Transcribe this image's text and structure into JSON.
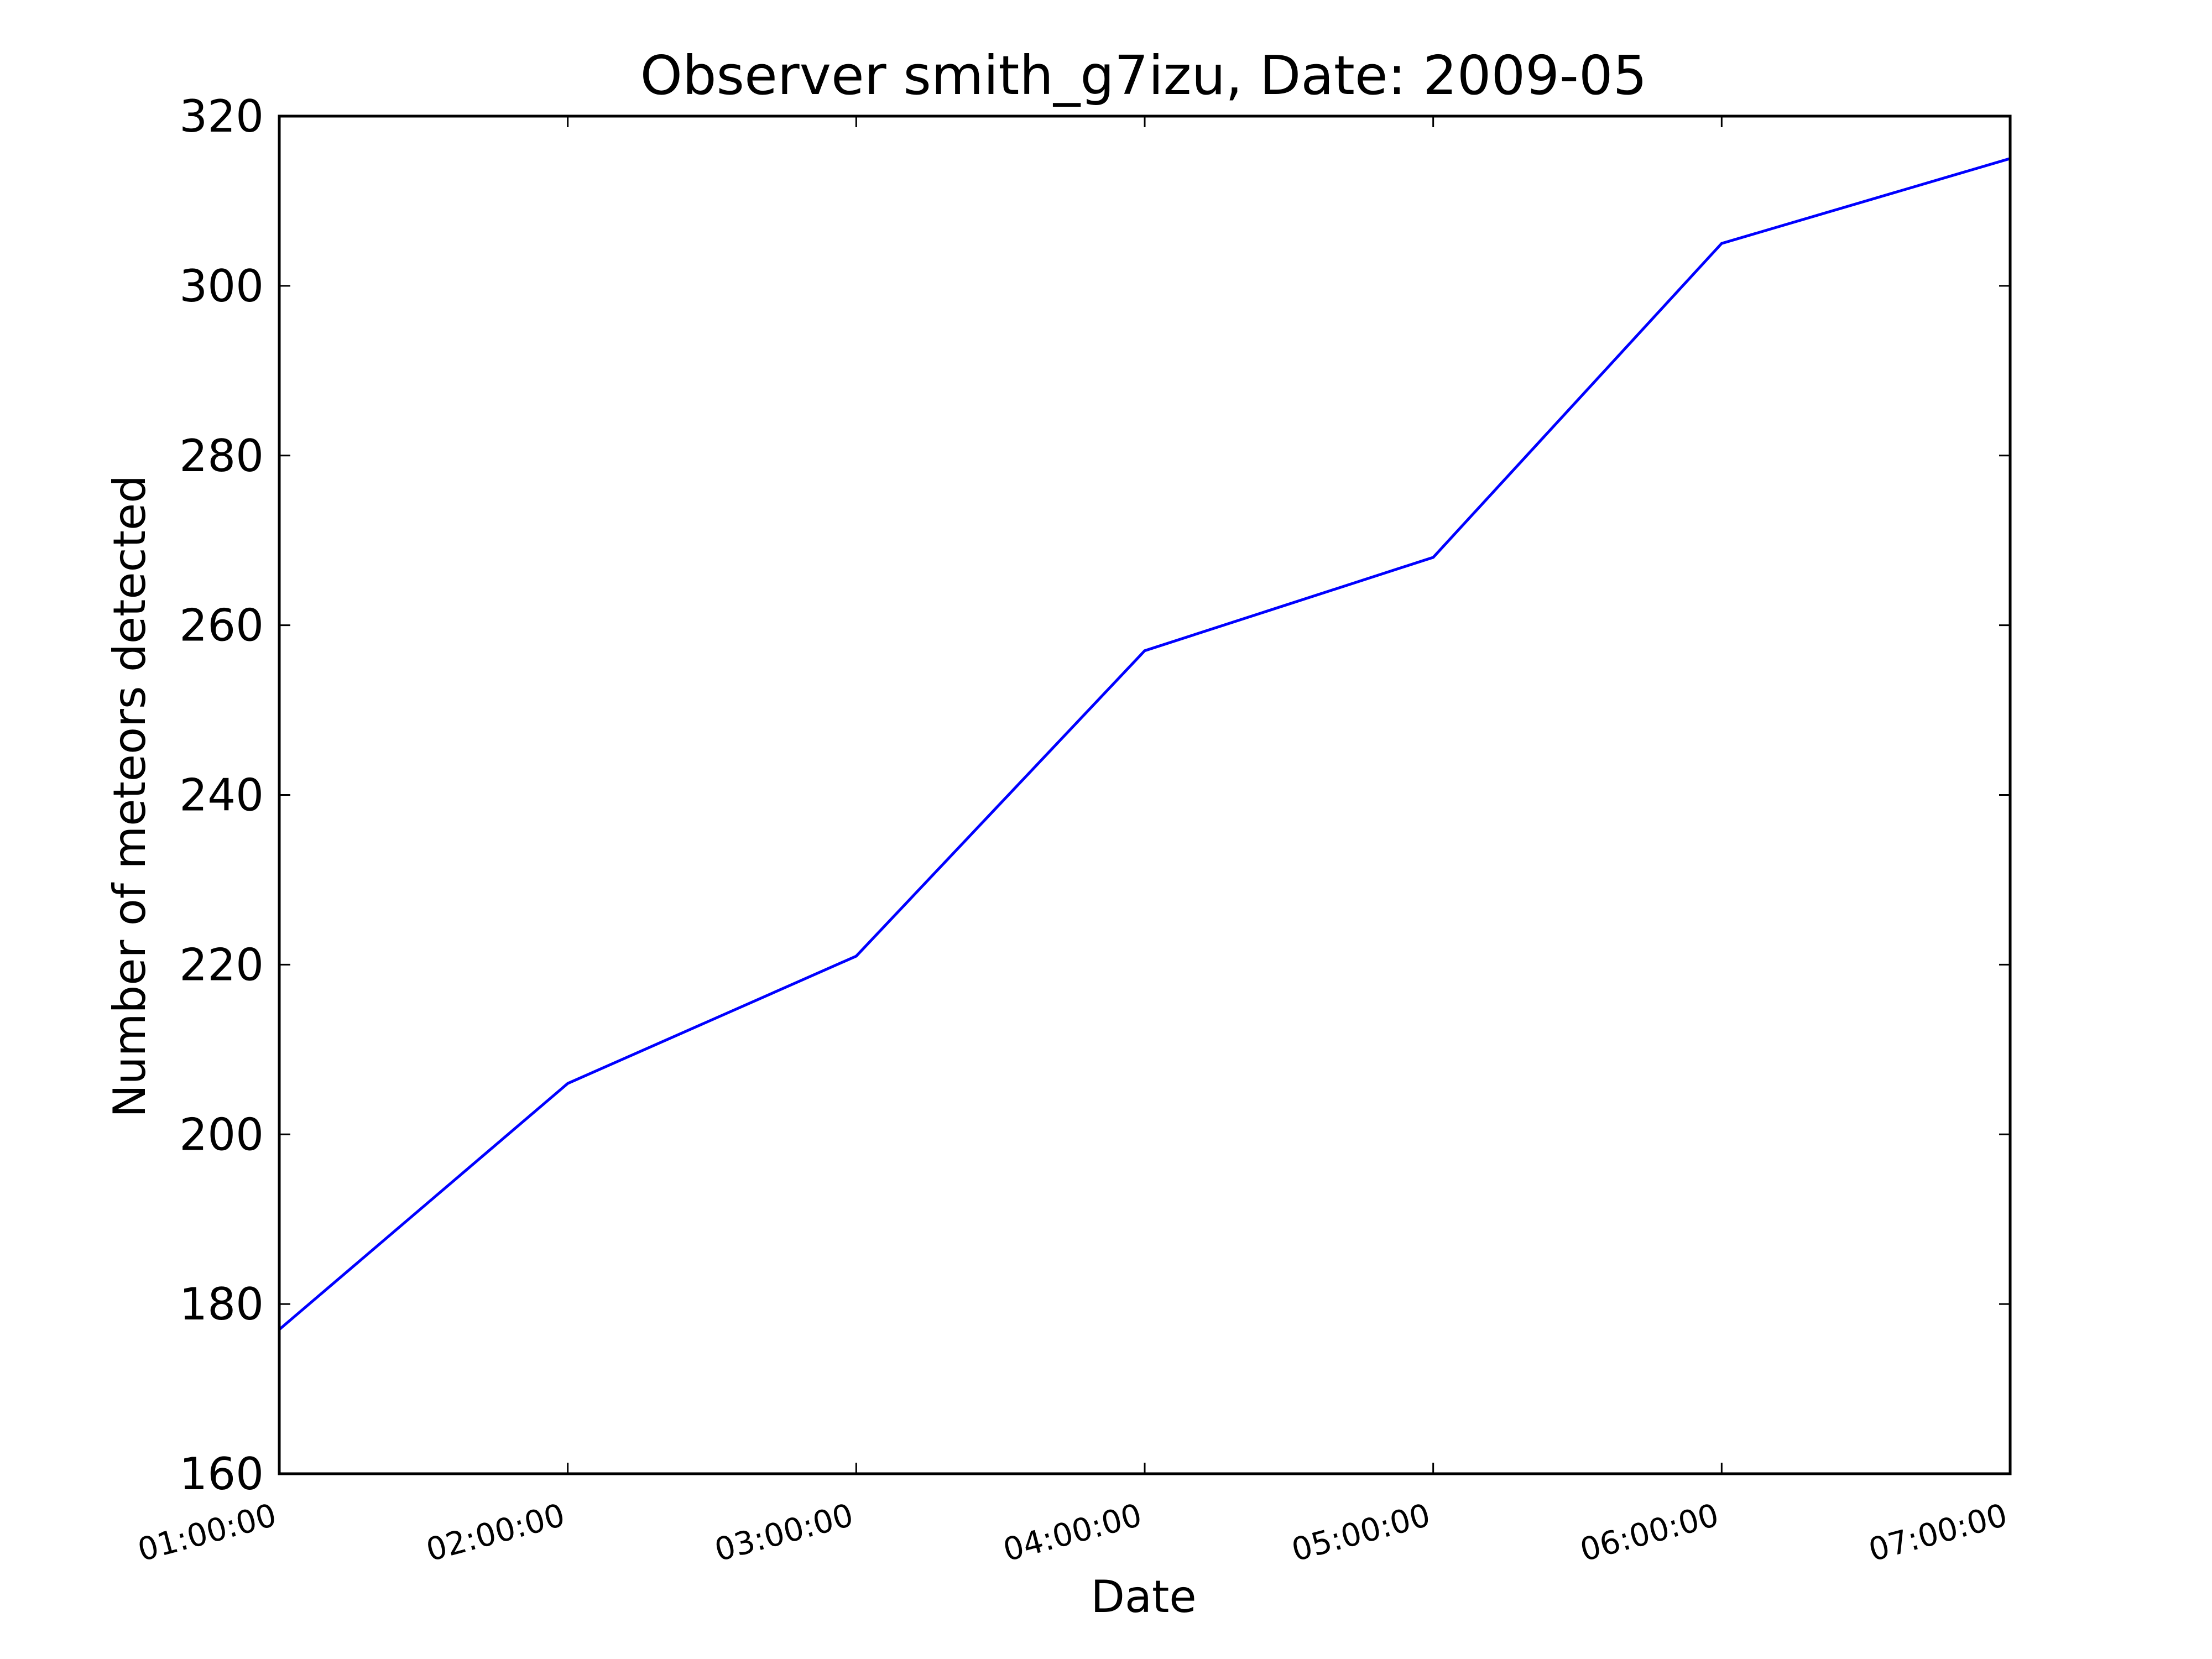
{
  "chart_data": {
    "type": "line",
    "title": "Observer smith_g7izu, Date: 2009-05",
    "xlabel": "Date",
    "ylabel": "Number of meteors detected",
    "x": [
      "01:00:00",
      "02:00:00",
      "03:00:00",
      "04:00:00",
      "05:00:00",
      "06:00:00",
      "07:00:00"
    ],
    "series": [
      {
        "values": [
          177,
          206,
          221,
          257,
          268,
          305,
          315
        ],
        "color": "#0000ff"
      }
    ],
    "ylim": [
      160,
      320
    ],
    "yticks": [
      160,
      180,
      200,
      220,
      240,
      260,
      280,
      300,
      320
    ],
    "xtick_labels": [
      "01:00:00",
      "02:00:00",
      "03:00:00",
      "04:00:00",
      "05:00:00",
      "06:00:00",
      "07:00:00"
    ],
    "grid": false,
    "legend": false
  },
  "colors": {
    "series": "#0000ff",
    "axes": "#000000",
    "background": "#ffffff"
  }
}
